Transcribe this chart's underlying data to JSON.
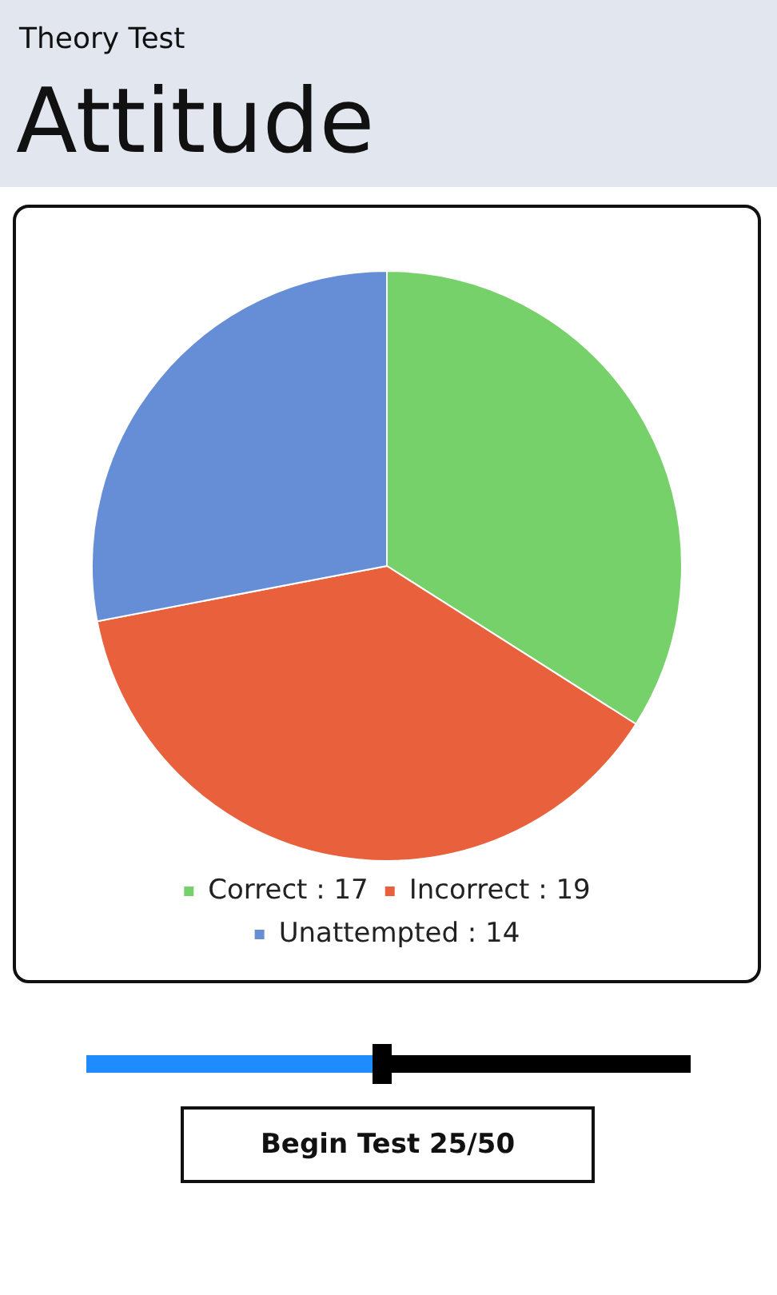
{
  "chart_data": {
    "type": "pie",
    "subtitle": "Theory Test",
    "title": "Attitude",
    "categories": [
      "Correct : 17",
      "Incorrect : 19",
      "Unattempted : 14"
    ],
    "values": [
      17,
      19,
      14
    ],
    "colors": [
      "#77d16a",
      "#e8603c",
      "#658ed6"
    ],
    "legend": "bottom",
    "annotations": [
      "Begin Test 25/50"
    ]
  }
}
